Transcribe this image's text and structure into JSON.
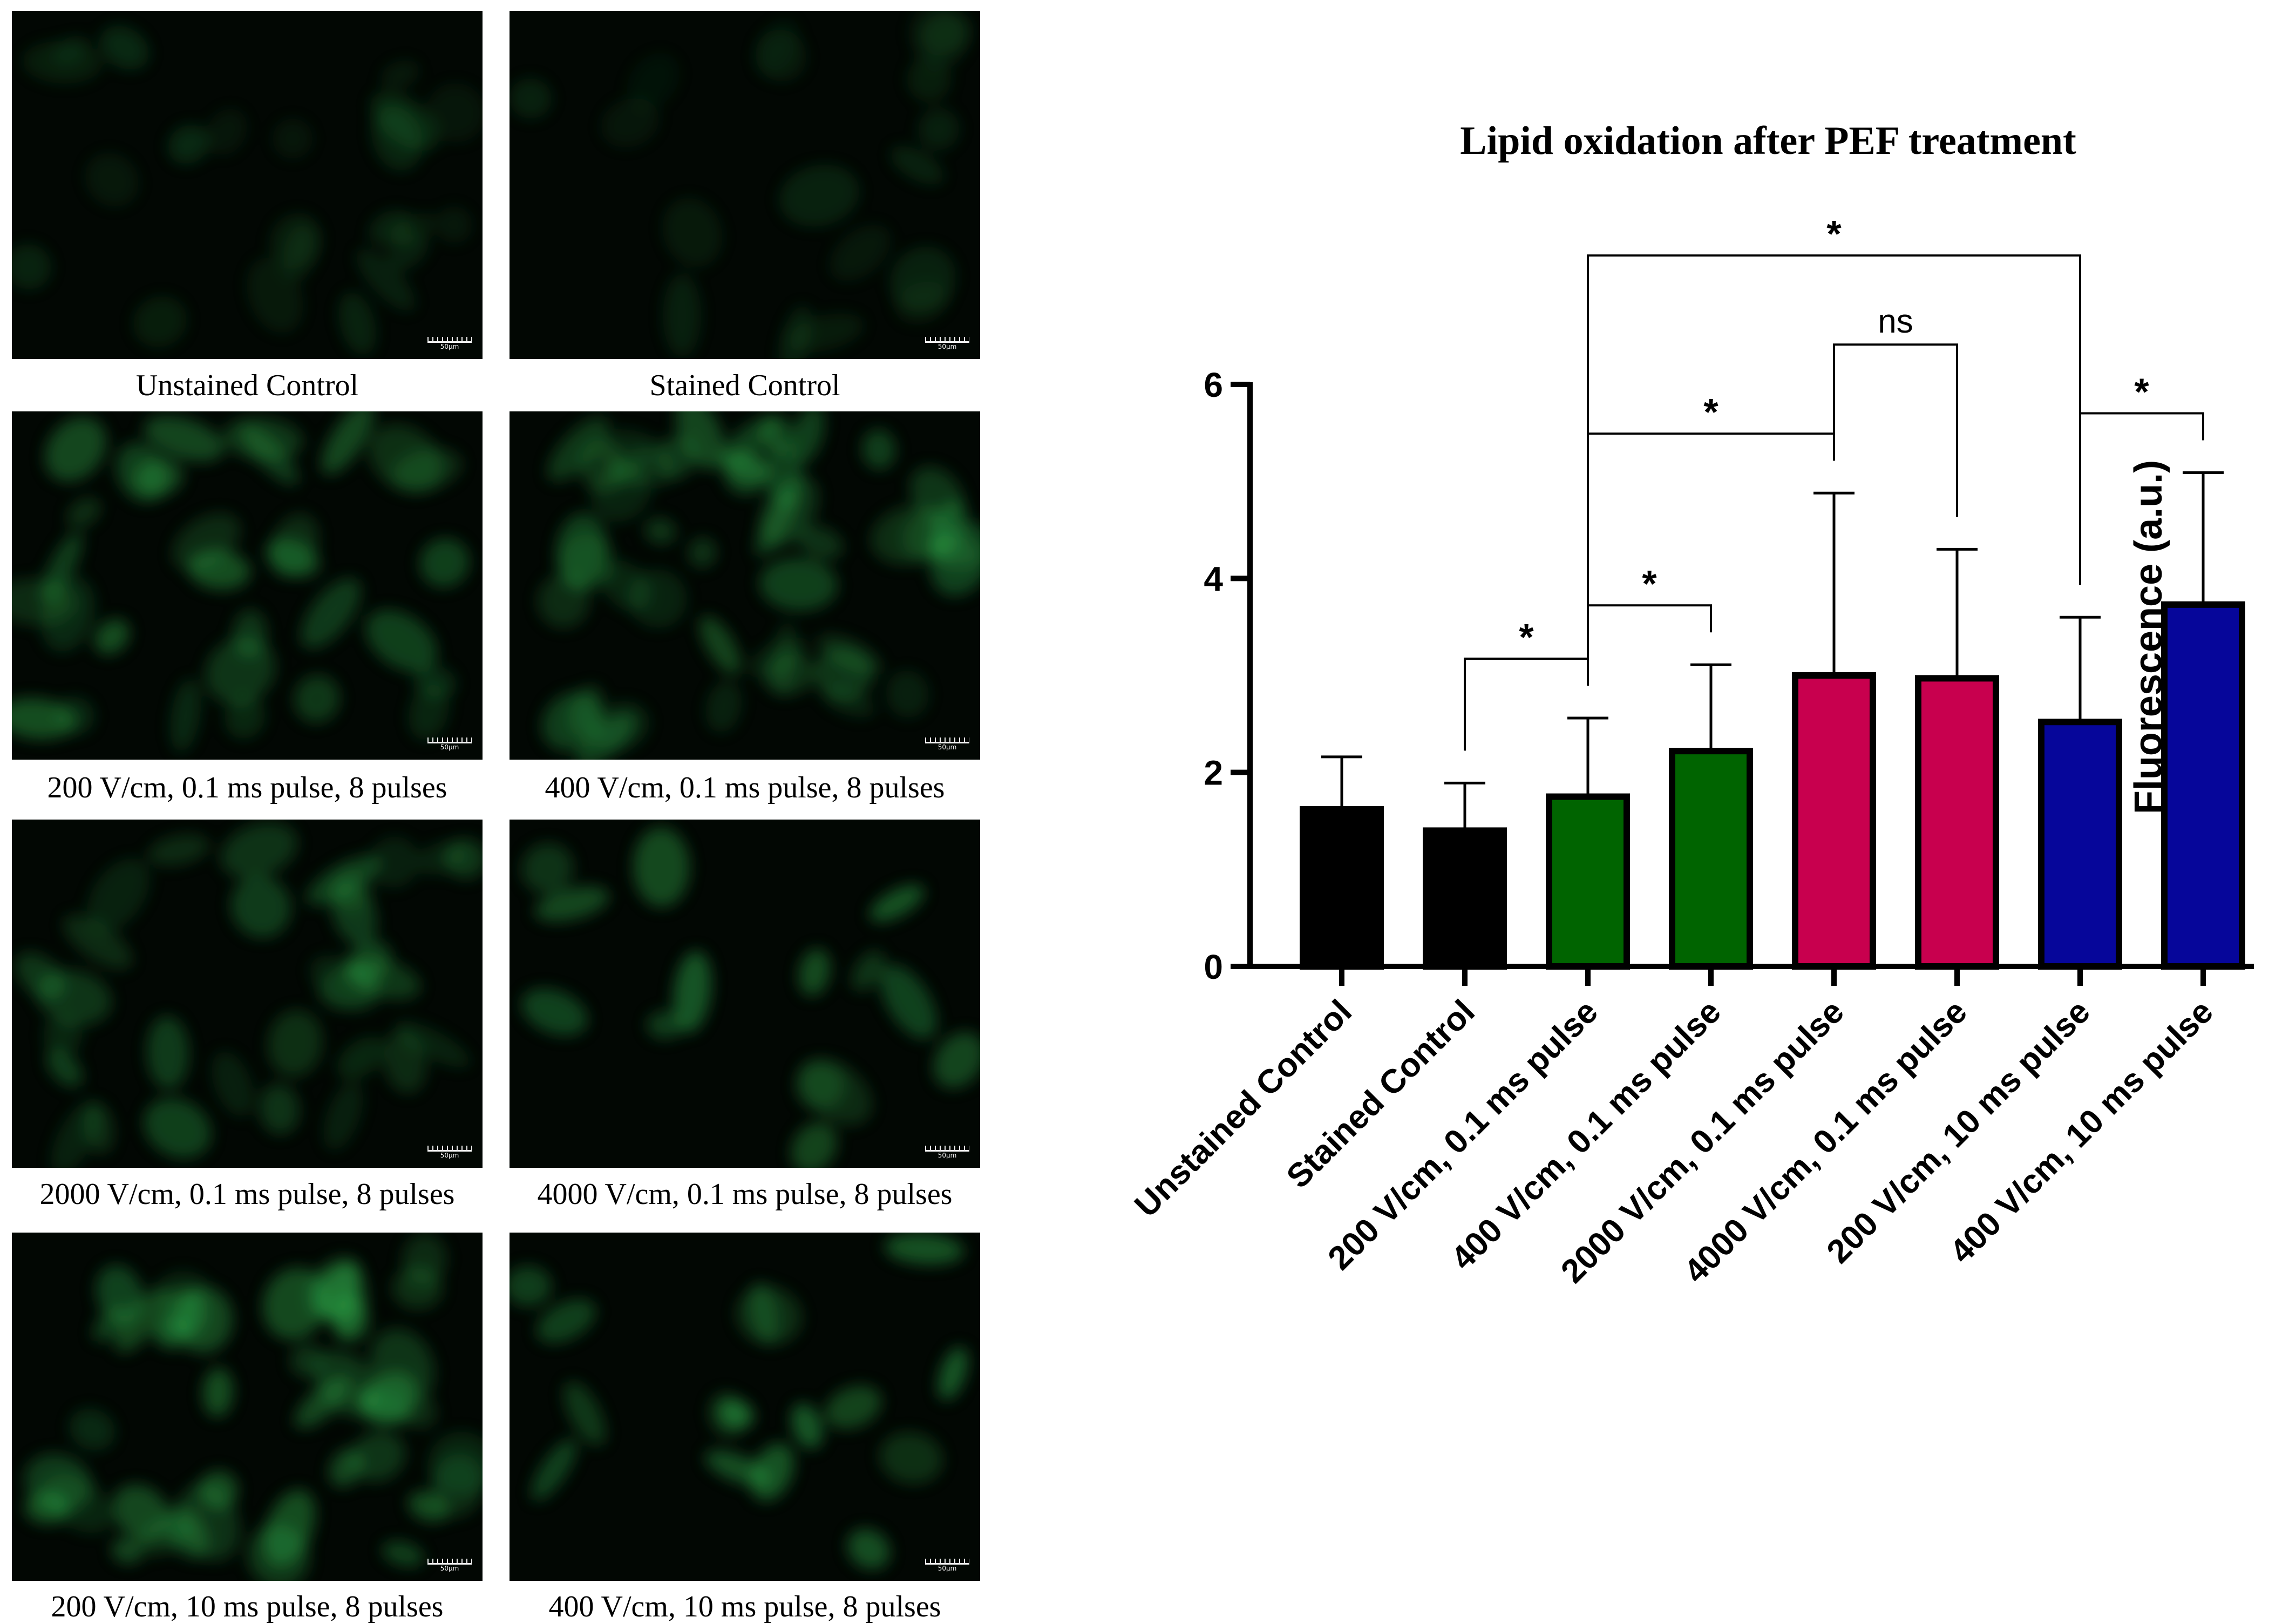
{
  "micrographs": {
    "scale_bar_label": "50μm",
    "panels": [
      {
        "caption": "Unstained Control"
      },
      {
        "caption": "Stained Control"
      },
      {
        "caption": "200 V/cm, 0.1 ms pulse, 8 pulses"
      },
      {
        "caption": "400 V/cm, 0.1 ms pulse, 8 pulses"
      },
      {
        "caption": "2000 V/cm, 0.1 ms pulse, 8 pulses"
      },
      {
        "caption": "4000 V/cm, 0.1 ms pulse, 8 pulses"
      },
      {
        "caption": "200 V/cm, 10 ms pulse, 8 pulses"
      },
      {
        "caption": "400 V/cm, 10 ms pulse, 8 pulses"
      }
    ]
  },
  "chart_data": {
    "type": "bar",
    "title": "Lipid oxidation after PEF treatment",
    "xlabel": "",
    "ylabel": "Fluorescence (a.u.)",
    "ylim": [
      0,
      6
    ],
    "yticks": [
      0,
      2,
      4,
      6
    ],
    "grid": false,
    "legend": "none",
    "categories": [
      "Unstained Control",
      "Stained Control",
      "200 V/cm, 0.1 ms pulse",
      "400 V/cm, 0.1 ms pulse",
      "2000 V/cm, 0.1 ms pulse",
      "4000 V/cm, 0.1 ms pulse",
      "200 V/cm, 10 ms pulse",
      "400 V/cm, 10 ms pulse"
    ],
    "values": [
      1.62,
      1.4,
      1.75,
      2.22,
      3.0,
      2.97,
      2.52,
      3.73
    ],
    "error_upper": [
      2.16,
      1.89,
      2.56,
      3.11,
      4.88,
      4.3,
      3.6,
      5.09
    ],
    "bar_colors": [
      "#000000",
      "#000000",
      "#006400",
      "#006400",
      "#c8004e",
      "#c8004e",
      "#06069a",
      "#06069a"
    ],
    "significance": [
      {
        "from": 1,
        "to": 2,
        "label": "*"
      },
      {
        "from": 2,
        "to": 3,
        "label": "*"
      },
      {
        "from": 2,
        "to": 4,
        "label": "*"
      },
      {
        "from": 4,
        "to": 5,
        "label": "ns"
      },
      {
        "from": 2,
        "to": 6,
        "label": "*"
      },
      {
        "from": 6,
        "to": 7,
        "label": "*"
      }
    ]
  }
}
